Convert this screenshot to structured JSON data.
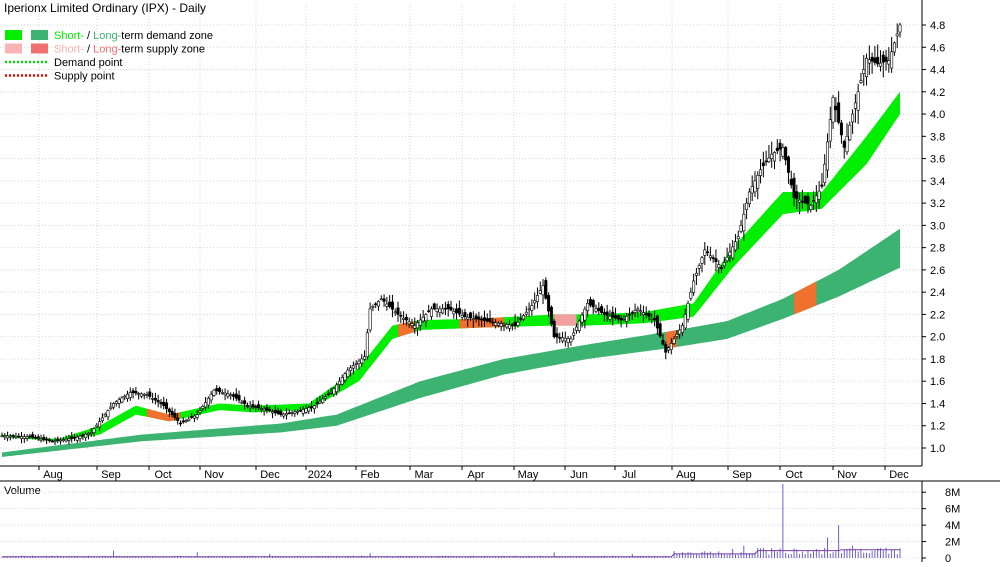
{
  "chart_data": {
    "type": "candlestick",
    "title": "Iperionx Limited Ordinary (IPX) - Daily",
    "legend": [
      {
        "name": "Short- / Long-term demand zone",
        "parts": [
          "Short-",
          " / ",
          "Long-",
          "term demand zone"
        ],
        "colors": [
          "#00ee00",
          "#3cb371"
        ],
        "style": "swatch"
      },
      {
        "name": "Short- / Long-term supply zone",
        "parts": [
          "Short-",
          " / ",
          "Long-",
          "term supply zone"
        ],
        "colors": [
          "#f8b4b4",
          "#f07070"
        ],
        "style": "swatch"
      },
      {
        "name": "Demand point",
        "parts": [
          "Demand point"
        ],
        "colors": [
          "#00dd00"
        ],
        "style": "dotted"
      },
      {
        "name": "Supply point",
        "parts": [
          "Supply point"
        ],
        "colors": [
          "#ee0000"
        ],
        "style": "dotted"
      }
    ],
    "x_tick_labels": [
      "Aug",
      "Sep",
      "Oct",
      "Nov",
      "Dec",
      "2024",
      "Feb",
      "Mar",
      "Apr",
      "May",
      "Jun",
      "Jul",
      "Aug",
      "Sep",
      "Oct",
      "Nov",
      "Dec"
    ],
    "y_tick_labels": [
      "1.0",
      "1.2",
      "1.4",
      "1.6",
      "1.8",
      "2.0",
      "2.2",
      "2.4",
      "2.6",
      "2.8",
      "3.0",
      "3.2",
      "3.4",
      "3.6",
      "3.8",
      "4.0",
      "4.2",
      "4.4",
      "4.6",
      "4.8"
    ],
    "ylim": [
      0.85,
      4.95
    ],
    "price_anchors": [
      [
        0,
        1.11
      ],
      [
        10,
        1.1
      ],
      [
        18,
        1.06
      ],
      [
        26,
        1.09
      ],
      [
        32,
        1.14
      ],
      [
        40,
        1.4
      ],
      [
        46,
        1.5
      ],
      [
        52,
        1.48
      ],
      [
        58,
        1.38
      ],
      [
        64,
        1.22
      ],
      [
        70,
        1.3
      ],
      [
        76,
        1.52
      ],
      [
        82,
        1.48
      ],
      [
        88,
        1.38
      ],
      [
        94,
        1.35
      ],
      [
        100,
        1.3
      ],
      [
        106,
        1.33
      ],
      [
        112,
        1.38
      ],
      [
        118,
        1.5
      ],
      [
        124,
        1.7
      ],
      [
        130,
        1.82
      ],
      [
        132,
        2.25
      ],
      [
        136,
        2.34
      ],
      [
        142,
        2.2
      ],
      [
        148,
        2.1
      ],
      [
        154,
        2.25
      ],
      [
        160,
        2.25
      ],
      [
        166,
        2.18
      ],
      [
        172,
        2.15
      ],
      [
        178,
        2.12
      ],
      [
        184,
        2.1
      ],
      [
        190,
        2.28
      ],
      [
        194,
        2.46
      ],
      [
        198,
        2.0
      ],
      [
        204,
        1.98
      ],
      [
        210,
        2.3
      ],
      [
        216,
        2.2
      ],
      [
        222,
        2.15
      ],
      [
        228,
        2.25
      ],
      [
        234,
        2.15
      ],
      [
        238,
        1.86
      ],
      [
        244,
        2.1
      ],
      [
        248,
        2.5
      ],
      [
        252,
        2.78
      ],
      [
        258,
        2.62
      ],
      [
        264,
        2.9
      ],
      [
        268,
        3.3
      ],
      [
        272,
        3.5
      ],
      [
        276,
        3.64
      ],
      [
        280,
        3.7
      ],
      [
        284,
        3.25
      ],
      [
        290,
        3.18
      ],
      [
        294,
        3.35
      ],
      [
        298,
        4.15
      ],
      [
        302,
        3.7
      ],
      [
        306,
        4.1
      ],
      [
        310,
        4.5
      ],
      [
        314,
        4.45
      ],
      [
        318,
        4.48
      ],
      [
        322,
        4.8
      ]
    ],
    "short_demand_zone": {
      "upper": [
        [
          0,
          1.12
        ],
        [
          20,
          1.08
        ],
        [
          35,
          1.2
        ],
        [
          48,
          1.38
        ],
        [
          60,
          1.3
        ],
        [
          78,
          1.4
        ],
        [
          90,
          1.38
        ],
        [
          110,
          1.4
        ],
        [
          128,
          1.72
        ],
        [
          140,
          2.1
        ],
        [
          150,
          2.15
        ],
        [
          170,
          2.16
        ],
        [
          198,
          2.2
        ],
        [
          210,
          2.2
        ],
        [
          230,
          2.22
        ],
        [
          248,
          2.3
        ],
        [
          262,
          2.8
        ],
        [
          280,
          3.3
        ],
        [
          294,
          3.3
        ],
        [
          310,
          3.8
        ],
        [
          322,
          4.2
        ]
      ],
      "lower": [
        [
          0,
          1.1
        ],
        [
          20,
          1.06
        ],
        [
          35,
          1.12
        ],
        [
          48,
          1.3
        ],
        [
          60,
          1.24
        ],
        [
          78,
          1.34
        ],
        [
          90,
          1.32
        ],
        [
          110,
          1.34
        ],
        [
          128,
          1.6
        ],
        [
          140,
          1.98
        ],
        [
          150,
          2.06
        ],
        [
          170,
          2.08
        ],
        [
          198,
          2.1
        ],
        [
          210,
          2.1
        ],
        [
          230,
          2.12
        ],
        [
          248,
          2.18
        ],
        [
          262,
          2.62
        ],
        [
          280,
          3.1
        ],
        [
          294,
          3.15
        ],
        [
          310,
          3.55
        ],
        [
          322,
          4.0
        ]
      ]
    },
    "long_demand_zone": {
      "upper": [
        [
          0,
          0.96
        ],
        [
          50,
          1.12
        ],
        [
          100,
          1.22
        ],
        [
          120,
          1.3
        ],
        [
          150,
          1.6
        ],
        [
          180,
          1.8
        ],
        [
          210,
          1.93
        ],
        [
          240,
          2.05
        ],
        [
          260,
          2.14
        ],
        [
          280,
          2.34
        ],
        [
          300,
          2.6
        ],
        [
          322,
          2.97
        ]
      ],
      "lower": [
        [
          0,
          0.92
        ],
        [
          50,
          1.06
        ],
        [
          100,
          1.14
        ],
        [
          120,
          1.2
        ],
        [
          150,
          1.45
        ],
        [
          180,
          1.66
        ],
        [
          210,
          1.8
        ],
        [
          240,
          1.9
        ],
        [
          260,
          1.98
        ],
        [
          280,
          2.16
        ],
        [
          300,
          2.36
        ],
        [
          322,
          2.62
        ]
      ]
    },
    "supply_zones": [
      {
        "from": 52,
        "to": 64,
        "type": "short"
      },
      {
        "from": 142,
        "to": 148,
        "type": "short"
      },
      {
        "from": 164,
        "to": 180,
        "type": "short"
      },
      {
        "from": 198,
        "to": 206,
        "type": "short-line"
      },
      {
        "from": 238,
        "to": 242,
        "type": "long"
      },
      {
        "from": 284,
        "to": 292,
        "type": "long"
      }
    ],
    "volume": {
      "label": "Volume",
      "y_tick_labels": [
        "0",
        "2M",
        "4M",
        "6M",
        "8M"
      ],
      "ylim": [
        0,
        9000000
      ],
      "spikes": [
        [
          40,
          900000
        ],
        [
          70,
          700000
        ],
        [
          96,
          500000
        ],
        [
          132,
          600000
        ],
        [
          198,
          700000
        ],
        [
          226,
          500000
        ],
        [
          262,
          1100000
        ],
        [
          266,
          1500000
        ],
        [
          280,
          9000000
        ],
        [
          296,
          2500000
        ],
        [
          300,
          4000000
        ],
        [
          305,
          1500000
        ],
        [
          315,
          1200000
        ],
        [
          320,
          1000000
        ]
      ]
    }
  }
}
